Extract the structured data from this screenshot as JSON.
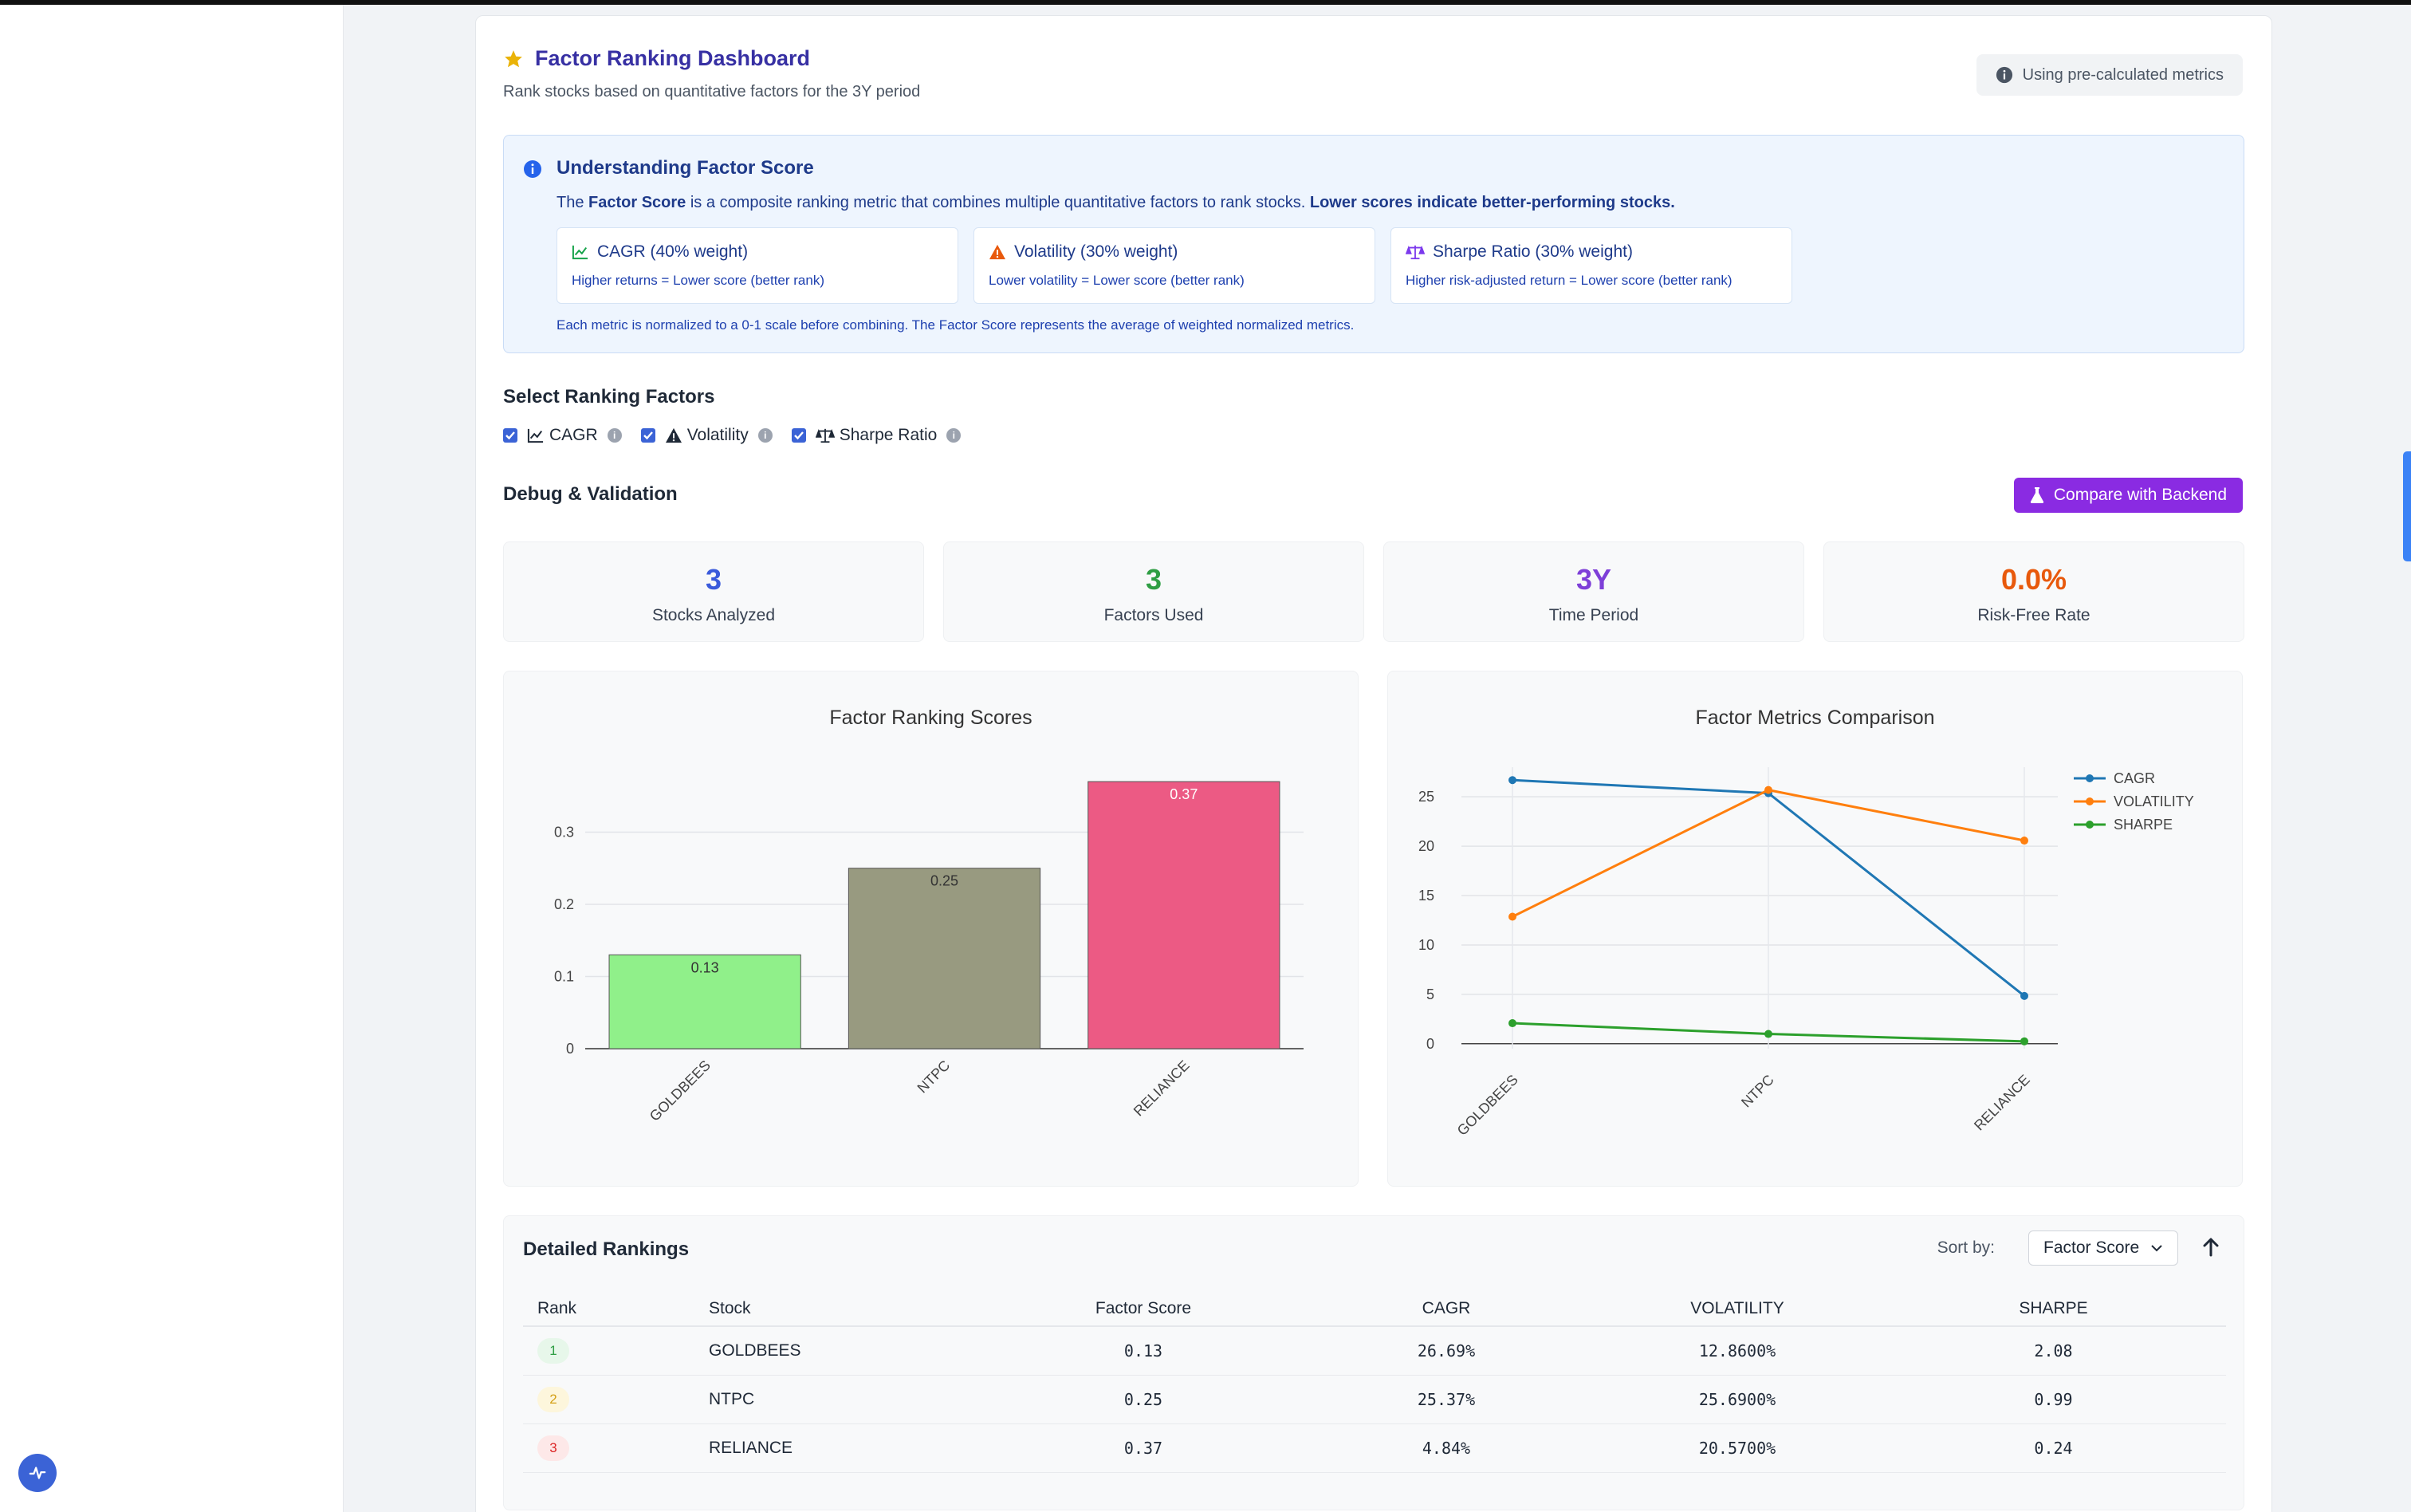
{
  "header": {
    "title": "Factor Ranking Dashboard",
    "subtitle": "Rank stocks based on quantitative factors for the 3Y period",
    "badge": "Using pre-calculated metrics"
  },
  "info": {
    "title": "Understanding Factor Score",
    "desc_pre": "The ",
    "desc_bold1": "Factor Score",
    "desc_mid": " is a composite ranking metric that combines multiple quantitative factors to rank stocks. ",
    "desc_bold2": "Lower scores indicate better-performing stocks.",
    "factors": [
      {
        "name": "CAGR (40% weight)",
        "desc": "Higher returns = Lower score (better rank)",
        "color": "#16a34a"
      },
      {
        "name": "Volatility (30% weight)",
        "desc": "Lower volatility = Lower score (better rank)",
        "color": "#dc2626"
      },
      {
        "name": "Sharpe Ratio (30% weight)",
        "desc": "Higher risk-adjusted return = Lower score (better rank)",
        "color": "#7c3aed"
      }
    ],
    "note": "Each metric is normalized to a 0-1 scale before combining. The Factor Score represents the average of weighted normalized metrics."
  },
  "select_factors": {
    "heading": "Select Ranking Factors",
    "items": [
      "CAGR",
      "Volatility",
      "Sharpe Ratio"
    ]
  },
  "debug": {
    "heading": "Debug & Validation",
    "compare_button": "Compare with Backend"
  },
  "stats": [
    {
      "value": "3",
      "label": "Stocks Analyzed",
      "color": "#3b5bdb"
    },
    {
      "value": "3",
      "label": "Factors Used",
      "color": "#2f9e44"
    },
    {
      "value": "3Y",
      "label": "Time Period",
      "color": "#7e3fd8"
    },
    {
      "value": "0.0%",
      "label": "Risk-Free Rate",
      "color": "#e8590c"
    }
  ],
  "chart_data": [
    {
      "type": "bar",
      "title": "Factor Ranking Scores",
      "categories": [
        "GOLDBEES",
        "NTPC",
        "RELIANCE"
      ],
      "values": [
        0.13,
        0.25,
        0.37
      ],
      "labels": [
        "0.13",
        "0.25",
        "0.37"
      ],
      "colors": [
        "#90f08a",
        "#989a80",
        "#ec5a84"
      ],
      "yticks": [
        0,
        0.1,
        0.2,
        0.3
      ],
      "ylim": [
        0,
        0.39
      ],
      "grid": true
    },
    {
      "type": "line",
      "title": "Factor Metrics Comparison",
      "categories": [
        "GOLDBEES",
        "NTPC",
        "RELIANCE"
      ],
      "series": [
        {
          "name": "CAGR",
          "values": [
            26.69,
            25.37,
            4.84
          ],
          "color": "#1f77b4"
        },
        {
          "name": "VOLATILITY",
          "values": [
            12.86,
            25.69,
            20.57
          ],
          "color": "#ff7f0e"
        },
        {
          "name": "SHARPE",
          "values": [
            2.08,
            0.99,
            0.24
          ],
          "color": "#2ca02c"
        }
      ],
      "yticks": [
        0,
        5,
        10,
        15,
        20,
        25
      ],
      "ylim": [
        -0.5,
        28
      ],
      "legend": "top-right",
      "grid": true
    }
  ],
  "table": {
    "heading": "Detailed Rankings",
    "sort_label": "Sort by:",
    "sort_value": "Factor Score",
    "columns": [
      "Rank",
      "Stock",
      "Factor Score",
      "CAGR",
      "VOLATILITY",
      "SHARPE"
    ],
    "rows": [
      {
        "rank": "1",
        "stock": "GOLDBEES",
        "score": "0.13",
        "cagr": "26.69%",
        "vol": "12.8600%",
        "sharpe": "2.08",
        "badge_bg": "#e7f7ea",
        "badge_fg": "#2f9e44"
      },
      {
        "rank": "2",
        "stock": "NTPC",
        "score": "0.25",
        "cagr": "25.37%",
        "vol": "25.6900%",
        "sharpe": "0.99",
        "badge_bg": "#fdf6dc",
        "badge_fg": "#d4a017"
      },
      {
        "rank": "3",
        "stock": "RELIANCE",
        "score": "0.37",
        "cagr": "4.84%",
        "vol": "20.5700%",
        "sharpe": "0.24",
        "badge_bg": "#fde8e8",
        "badge_fg": "#dc2626"
      }
    ]
  }
}
